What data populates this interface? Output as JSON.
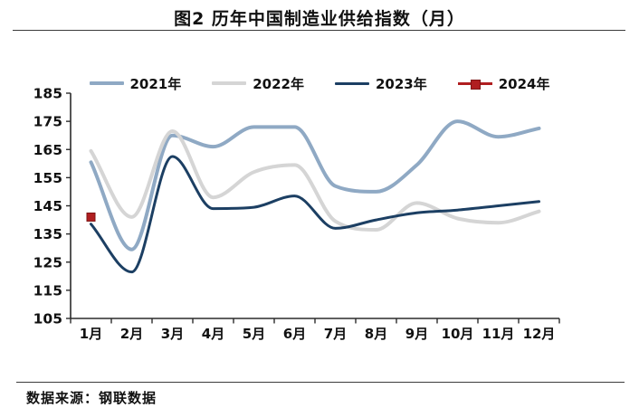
{
  "page": {
    "title": "图2 历年中国制造业供给指数（月）",
    "source_note": "数据来源：钢联数据"
  },
  "chart_data": {
    "type": "line",
    "title": "图2 历年中国制造业供给指数（月）",
    "categories": [
      "1月",
      "2月",
      "3月",
      "4月",
      "5月",
      "6月",
      "7月",
      "8月",
      "9月",
      "10月",
      "11月",
      "12月"
    ],
    "series": [
      {
        "name": "2021年",
        "style": "line",
        "color": "#8FA9C4",
        "line_width": 4,
        "values": [
          160.5,
          129.5,
          170,
          166,
          173,
          173,
          152,
          150,
          159.5,
          175,
          169.5,
          172.5
        ]
      },
      {
        "name": "2022年",
        "style": "line",
        "color": "#D5D5D5",
        "line_width": 4,
        "values": [
          164.5,
          141,
          171.5,
          148,
          157,
          159.5,
          139.5,
          136.5,
          146,
          140.5,
          139,
          143
        ]
      },
      {
        "name": "2023年",
        "style": "line",
        "color": "#1C3F63",
        "line_width": 3,
        "values": [
          138.5,
          121.5,
          162.5,
          144,
          144.5,
          148.5,
          137,
          140,
          142.5,
          143.5,
          145,
          146.5
        ]
      },
      {
        "name": "2024年",
        "style": "square-marker",
        "color": "#B01E20",
        "marker_size": 9,
        "values": [
          141,
          null,
          null,
          null,
          null,
          null,
          null,
          null,
          null,
          null,
          null,
          null
        ]
      }
    ],
    "ylim": [
      105,
      185
    ],
    "ytick_step": 10,
    "xlabel": "",
    "ylabel": "",
    "grid": false,
    "legend_position": "top",
    "axis_color": "#2b2b2b"
  }
}
